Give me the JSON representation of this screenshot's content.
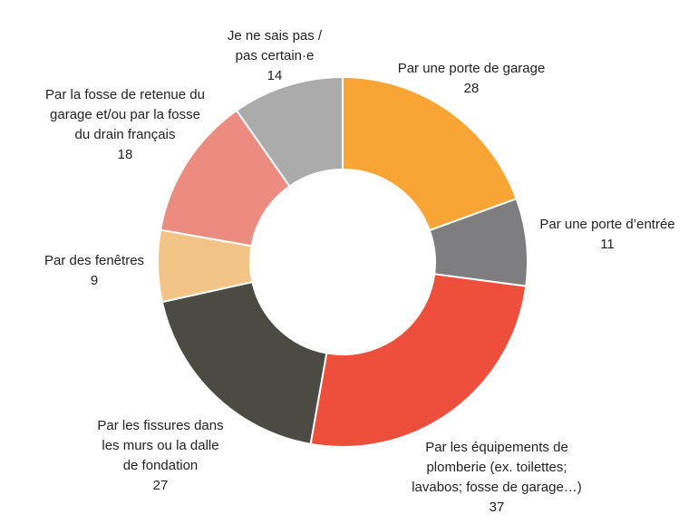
{
  "chart_data": {
    "type": "pie",
    "variant": "donut",
    "legend": "none",
    "slices": [
      {
        "label_lines": [
          "Par une porte de garage"
        ],
        "value": 28,
        "value_text": "28",
        "color": "#F9A535"
      },
      {
        "label_lines": [
          "Par une porte d’entrée"
        ],
        "value": 11,
        "value_text": "11",
        "color": "#7E7E80"
      },
      {
        "label_lines": [
          "Par les équipements de",
          "plomberie (ex. toilettes;",
          "lavabos; fosse de garage…)"
        ],
        "value": 37,
        "value_text": "37",
        "color": "#EE4F3C"
      },
      {
        "label_lines": [
          "Par les fissures dans",
          "les murs ou la dalle",
          "de fondation"
        ],
        "value": 27,
        "value_text": "27",
        "color": "#4B4A43"
      },
      {
        "label_lines": [
          "Par des fenêtres"
        ],
        "value": 9,
        "value_text": "9",
        "color": "#F3C488"
      },
      {
        "label_lines": [
          "Par la fosse de retenue du",
          "garage et/ou par la fosse",
          "du drain français"
        ],
        "value": 18,
        "value_text": "18",
        "color": "#EC8C80"
      },
      {
        "label_lines": [
          "Je ne sais pas /",
          "pas certain·e"
        ],
        "value": 14,
        "value_text": "14",
        "color": "#ABABAB"
      }
    ]
  }
}
